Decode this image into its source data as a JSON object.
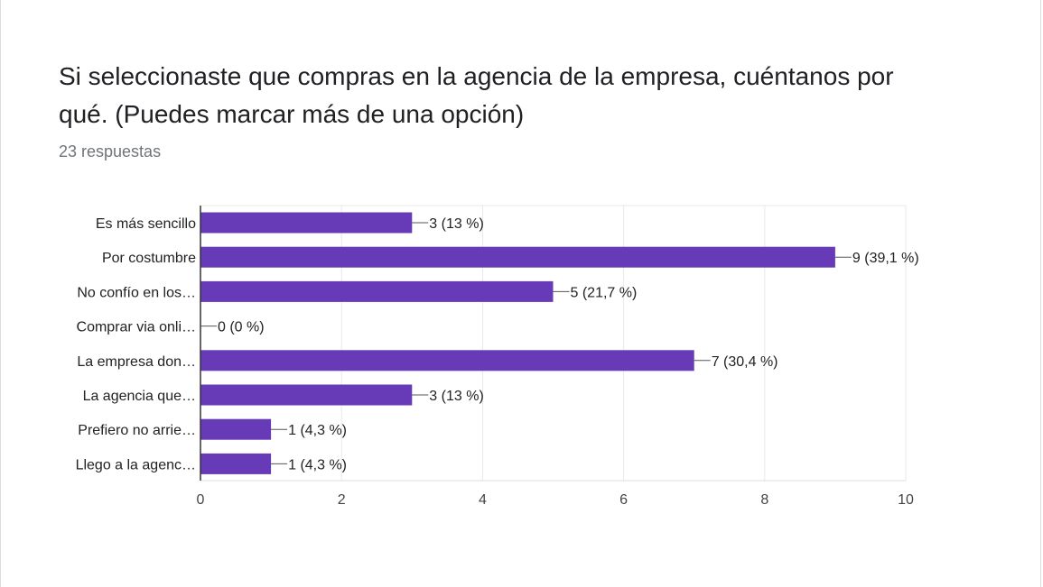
{
  "header": {
    "title": "Si seleccionaste que compras en la agencia de la empresa, cuéntanos por qué. (Puedes marcar más de una opción)",
    "response_count": "23 respuestas"
  },
  "colors": {
    "bar": "#673ab7",
    "grid": "#e8e8e8",
    "axis": "#333333",
    "label": "#222222",
    "tick": "#444444"
  },
  "chart_data": {
    "type": "bar",
    "orientation": "horizontal",
    "categories": [
      "Es más sencillo",
      "Por costumbre",
      "No confío en los…",
      "Comprar via onli…",
      "La empresa don…",
      "La agencia que…",
      "Prefiero no arrie…",
      "Llego a la agenc…"
    ],
    "values": [
      3,
      9,
      5,
      0,
      7,
      3,
      1,
      1
    ],
    "data_labels": [
      "3 (13 %)",
      "9 (39,1 %)",
      "5 (21,7 %)",
      "0 (0 %)",
      "7 (30,4 %)",
      "3 (13 %)",
      "1 (4,3 %)",
      "1 (4,3 %)"
    ],
    "xlim": [
      0,
      10
    ],
    "x_ticks": [
      0,
      2,
      4,
      6,
      8,
      10
    ],
    "grid": true,
    "legend": "none"
  }
}
